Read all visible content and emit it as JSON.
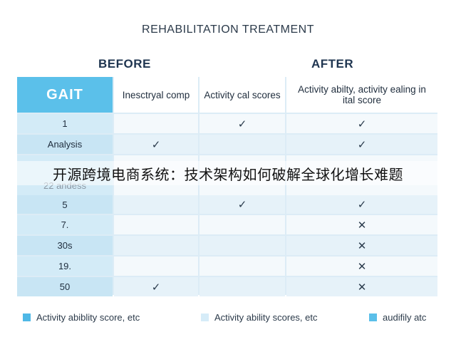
{
  "title": "REHABILITATION TREATMENT",
  "before_label": "BEFORE",
  "after_label": "AFTER",
  "table": {
    "headers": [
      "GAIT",
      "Inesctryal comp",
      "Activity cal scores",
      "Activity abilty, activity ealing in ital score"
    ],
    "rows": [
      {
        "label": "1",
        "c1": "",
        "c2": "✓",
        "c3": "✓"
      },
      {
        "label": "Analysis",
        "c1": "✓",
        "c2": "",
        "c3": "✓"
      },
      {
        "label": "22 andess",
        "c1": "✓",
        "c2": "✓",
        "c3": "✓"
      },
      {
        "label": "5",
        "c1": "",
        "c2": "✓",
        "c3": "✓"
      },
      {
        "label": "7.",
        "c1": "",
        "c2": "",
        "c3": "✕"
      },
      {
        "label": "30s",
        "c1": "",
        "c2": "",
        "c3": "✕"
      },
      {
        "label": "19.",
        "c1": "",
        "c2": "",
        "c3": "✕"
      },
      {
        "label": "50",
        "c1": "✓",
        "c2": "",
        "c3": "✕"
      }
    ]
  },
  "overlay_text": "开源跨境电商系统：技术架构如何破解全球化增长难题",
  "legend": [
    {
      "label": "Activity abiblity score, etc",
      "color": "#4fb8e6"
    },
    {
      "label": "Activity ability scores, etc",
      "color": "#d6ecf8"
    },
    {
      "label": "audifily atc",
      "color": "#5bbfe9"
    }
  ]
}
